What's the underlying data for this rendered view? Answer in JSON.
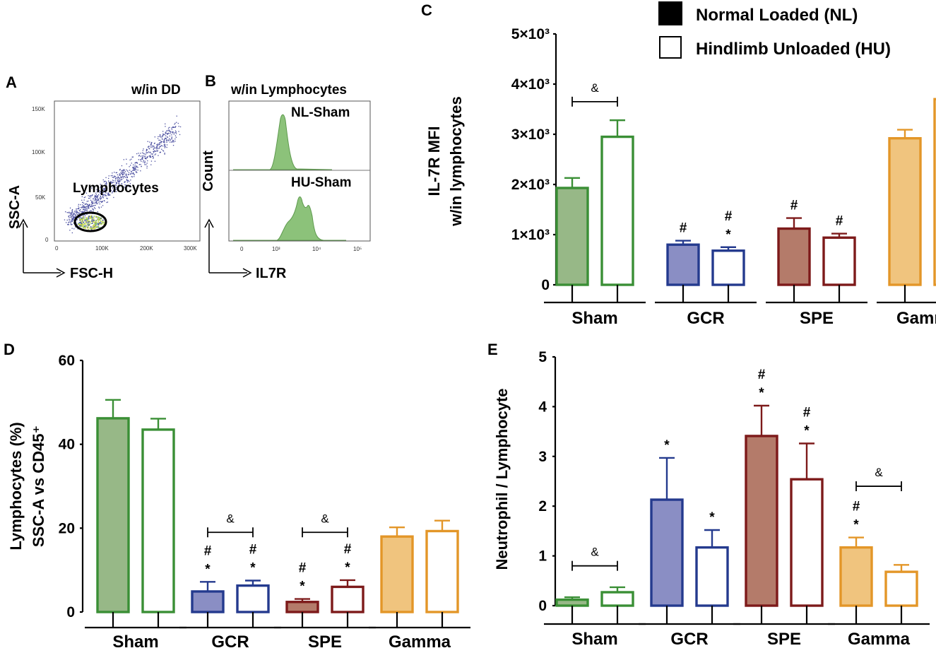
{
  "panels": {
    "A": {
      "label": "A",
      "gate_title": "w/in DD",
      "y_axis": "SSC-A",
      "x_axis": "FSC-H",
      "gate_label": "Lymphocytes",
      "y_ticks": [
        "150K",
        "100K",
        "50K",
        "0"
      ],
      "x_ticks": [
        "0",
        "100K",
        "200K",
        "300K"
      ]
    },
    "B": {
      "label": "B",
      "gate_title": "w/in Lymphocytes",
      "y_axis": "Count",
      "x_axis": "IL7R",
      "top_label": "NL-Sham",
      "bottom_label": "HU-Sham",
      "x_ticks": [
        "0",
        "10³",
        "10⁴",
        "10⁵"
      ]
    },
    "C": {
      "label": "C"
    },
    "D": {
      "label": "D"
    },
    "E": {
      "label": "E"
    }
  },
  "legend": {
    "items": [
      {
        "label": "Normal Loaded (NL)",
        "fill": "#000000"
      },
      {
        "label": "Hindlimb Unloaded (HU)",
        "fill": "#ffffff"
      }
    ]
  },
  "colors": {
    "Sham": {
      "stroke": "#3a8f35",
      "fill": "#97b887"
    },
    "GCR": {
      "stroke": "#243a8e",
      "fill": "#8a8ec4"
    },
    "SPE": {
      "stroke": "#7d1a1a",
      "fill": "#b47b6a"
    },
    "Gamma": {
      "stroke": "#e39628",
      "fill": "#f0c47e"
    }
  },
  "chart_data": [
    {
      "panel": "C",
      "type": "bar",
      "categories": [
        "Sham",
        "GCR",
        "SPE",
        "Gamma"
      ],
      "ylabel_lines": [
        "IL-7R MFI",
        "w/in lymphocytes"
      ],
      "ylim": [
        0,
        5000
      ],
      "yticks": [
        0,
        1000,
        2000,
        3000,
        4000,
        5000
      ],
      "ytick_labels": [
        "0",
        "1×10³",
        "2×10³",
        "3×10³",
        "4×10³",
        "5×10³"
      ],
      "series": [
        {
          "name": "Normal Loaded (NL)",
          "values": [
            1930,
            800,
            1120,
            2920
          ],
          "errors": [
            200,
            80,
            210,
            170
          ]
        },
        {
          "name": "Hindlimb Unloaded (HU)",
          "values": [
            2950,
            680,
            940,
            3700
          ],
          "errors": [
            330,
            70,
            80,
            300
          ]
        }
      ],
      "annotations": [
        {
          "cat": 0,
          "series": 0,
          "marks": []
        },
        {
          "cat": 0,
          "series": 1,
          "marks": []
        },
        {
          "cat": 1,
          "series": 0,
          "marks": [
            "#"
          ]
        },
        {
          "cat": 1,
          "series": 1,
          "marks": [
            "#",
            "*"
          ]
        },
        {
          "cat": 2,
          "series": 0,
          "marks": [
            "#"
          ]
        },
        {
          "cat": 2,
          "series": 1,
          "marks": [
            "#"
          ]
        },
        {
          "cat": 3,
          "series": 0,
          "marks": []
        },
        {
          "cat": 3,
          "series": 1,
          "marks": []
        }
      ],
      "brackets": [
        {
          "cat": 0,
          "symbol": "&",
          "y": 3650
        }
      ]
    },
    {
      "panel": "D",
      "type": "bar",
      "categories": [
        "Sham",
        "GCR",
        "SPE",
        "Gamma"
      ],
      "ylabel_lines": [
        "Lymphocytes (%)",
        "SSC-A vs CD45⁺"
      ],
      "ylim": [
        0,
        60
      ],
      "yticks": [
        0,
        20,
        40,
        60
      ],
      "ytick_labels": [
        "0",
        "20",
        "40",
        "60"
      ],
      "series": [
        {
          "name": "Normal Loaded (NL)",
          "values": [
            46.2,
            4.9,
            2.4,
            18.0
          ],
          "errors": [
            4.4,
            2.3,
            0.7,
            2.2
          ]
        },
        {
          "name": "Hindlimb Unloaded (HU)",
          "values": [
            43.5,
            6.3,
            6.0,
            19.3
          ],
          "errors": [
            2.6,
            1.2,
            1.6,
            2.5
          ]
        }
      ],
      "annotations": [
        {
          "cat": 1,
          "series": 0,
          "marks": [
            "#",
            "*"
          ]
        },
        {
          "cat": 1,
          "series": 1,
          "marks": [
            "#",
            "*"
          ]
        },
        {
          "cat": 2,
          "series": 0,
          "marks": [
            "#",
            "*"
          ]
        },
        {
          "cat": 2,
          "series": 1,
          "marks": [
            "#",
            "*"
          ]
        }
      ],
      "brackets": [
        {
          "cat": 1,
          "symbol": "&",
          "y": 19
        },
        {
          "cat": 2,
          "symbol": "&",
          "y": 19
        }
      ]
    },
    {
      "panel": "E",
      "type": "bar",
      "categories": [
        "Sham",
        "GCR",
        "SPE",
        "Gamma"
      ],
      "ylabel_lines": [
        "Neutrophil / Lymphocyte"
      ],
      "ylim": [
        0,
        5
      ],
      "yticks": [
        0,
        1,
        2,
        3,
        4,
        5
      ],
      "ytick_labels": [
        "0",
        "1",
        "2",
        "3",
        "4",
        "5"
      ],
      "series": [
        {
          "name": "Normal Loaded (NL)",
          "values": [
            0.12,
            2.13,
            3.41,
            1.17
          ],
          "errors": [
            0.05,
            0.84,
            0.61,
            0.2
          ]
        },
        {
          "name": "Hindlimb Unloaded (HU)",
          "values": [
            0.27,
            1.17,
            2.54,
            0.68
          ],
          "errors": [
            0.1,
            0.35,
            0.72,
            0.14
          ]
        }
      ],
      "annotations": [
        {
          "cat": 1,
          "series": 0,
          "marks": [
            "*"
          ]
        },
        {
          "cat": 1,
          "series": 1,
          "marks": [
            "*"
          ]
        },
        {
          "cat": 2,
          "series": 0,
          "marks": [
            "#",
            "*"
          ]
        },
        {
          "cat": 2,
          "series": 1,
          "marks": [
            "#",
            "*"
          ]
        },
        {
          "cat": 3,
          "series": 0,
          "marks": [
            "#",
            "*"
          ]
        }
      ],
      "brackets": [
        {
          "cat": 0,
          "symbol": "&",
          "y": 0.8
        },
        {
          "cat": 3,
          "symbol": "&",
          "y": 2.4
        }
      ]
    }
  ]
}
